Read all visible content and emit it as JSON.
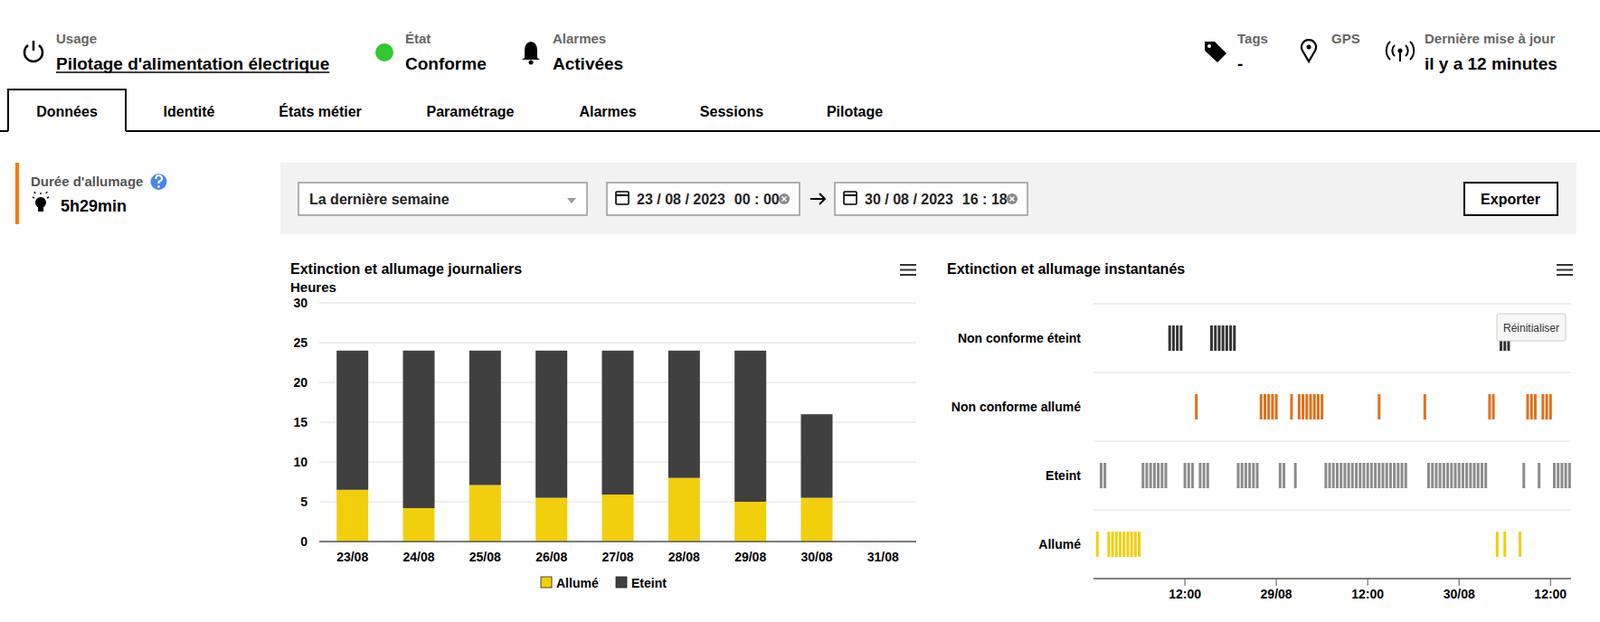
{
  "header": {
    "items": [
      {
        "label": "Usage",
        "value": "Pilotage d'alimentation électrique"
      },
      {
        "label": "État",
        "value": "Conforme"
      },
      {
        "label": "Alarmes",
        "value": "Activées"
      },
      {
        "label": "Tags",
        "value": "-"
      },
      {
        "label": "GPS"
      },
      {
        "label": "Dernière mise à jour",
        "value": "il y a 12 minutes"
      }
    ]
  },
  "tabs": [
    "Données",
    "Identité",
    "États métier",
    "Paramétrage",
    "Alarmes",
    "Sessions",
    "Pilotage"
  ],
  "active_tab": 0,
  "sidebar": {
    "label": "Durée d'allumage",
    "value": "5h29min"
  },
  "filters": {
    "period": "La dernière semaine",
    "start_date": "23 / 08 / 2023",
    "start_time": "00 : 00",
    "end_date": "30 / 08 / 2023",
    "end_time": "16 : 18",
    "export": "Exporter"
  },
  "chart_data": [
    {
      "type": "bar",
      "title": "Extinction et allumage journaliers",
      "y_label": "Heures",
      "categories": [
        "23/08",
        "24/08",
        "25/08",
        "26/08",
        "27/08",
        "28/08",
        "29/08",
        "30/08",
        "31/08"
      ],
      "series": [
        {
          "name": "Allumé",
          "color": "#f2cf0c",
          "values": [
            6.5,
            4.2,
            7.1,
            5.5,
            5.9,
            8.0,
            5.0,
            5.5,
            null
          ]
        },
        {
          "name": "Eteint",
          "color": "#404040",
          "values": [
            17.5,
            19.8,
            16.9,
            18.5,
            18.1,
            16.0,
            19.0,
            10.5,
            null
          ]
        }
      ],
      "stacked": true,
      "ylim": [
        0,
        30
      ],
      "yticks": [
        0,
        5,
        10,
        15,
        20,
        25,
        30
      ],
      "grid": true,
      "legend": "bottom"
    },
    {
      "type": "timeline",
      "title": "Extinction et allumage instantanés",
      "reset_button": "Réinitialiser",
      "series": [
        {
          "name": "Non conforme éteint",
          "color": "#333333",
          "x": [
            10,
            10.5,
            11,
            11.5,
            15.5,
            16,
            16.5,
            17,
            17.5,
            18,
            18.5,
            53.5,
            54,
            54.5
          ]
        },
        {
          "name": "Non conforme allumé",
          "color": "#e0701a",
          "x": [
            13.5,
            22,
            22.5,
            23,
            23.5,
            24,
            26,
            27,
            27.5,
            28,
            28.5,
            29,
            29.5,
            30,
            37.5,
            43.5,
            52,
            52.5,
            57,
            57.5,
            58,
            59,
            59.5,
            60
          ]
        },
        {
          "name": "Eteint",
          "color": "#8c8c8c",
          "x": [
            1,
            1.5,
            6.5,
            7,
            7.5,
            8,
            8.5,
            9,
            9.5,
            12,
            12.5,
            13,
            14,
            14.5,
            15,
            19,
            19.5,
            20,
            20.5,
            21,
            21.5,
            24.5,
            25,
            26.5,
            30.5,
            31,
            31.5,
            32,
            32.5,
            33,
            33.5,
            34,
            34.5,
            35,
            35.5,
            36,
            36.5,
            37,
            37.5,
            38,
            38.5,
            39,
            39.5,
            40,
            40.5,
            41,
            44,
            44.5,
            45,
            45.5,
            46,
            46.5,
            47,
            47.5,
            48,
            48.5,
            49,
            49.5,
            50,
            50.5,
            51,
            51.5,
            56.5,
            58.5,
            60.5,
            61,
            61.5,
            62,
            62.5
          ]
        },
        {
          "name": "Allumé",
          "color": "#f2cf0c",
          "x": [
            0.5,
            2,
            2.5,
            3,
            3.5,
            4,
            4.5,
            5,
            5.5,
            6,
            53,
            54,
            56
          ]
        }
      ],
      "xlim": [
        0,
        62.7
      ],
      "xticks": [
        {
          "value": 12,
          "label": "12:00"
        },
        {
          "value": 24,
          "label": "29/08"
        },
        {
          "value": 36,
          "label": "12:00"
        },
        {
          "value": 48,
          "label": "30/08"
        },
        {
          "value": 60,
          "label": "12:00"
        }
      ],
      "grid": true
    }
  ]
}
